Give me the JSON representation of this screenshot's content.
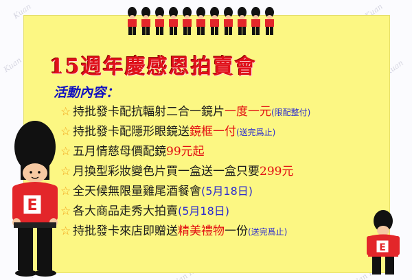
{
  "watermark": {
    "text": "Kuan",
    "text2": "Nan Kuan"
  },
  "title": "15週年慶感恩拍賣會",
  "subheading": "活動內容：",
  "items": [
    {
      "text": "持批發卡配抗輻射二合一鏡片",
      "highlight": "一度一元",
      "note": "(限配整付)"
    },
    {
      "text": "持批發卡配隱形眼鏡送",
      "highlight": "鏡框一付",
      "note": "(送完爲止)"
    },
    {
      "text": "五月情慈母價配鏡",
      "highlight": "99元起",
      "note": ""
    },
    {
      "text": "月換型彩妝變色片買一盒送一盒只要",
      "highlight": "299元",
      "note": ""
    },
    {
      "text": "全天候無限量雞尾酒餐會",
      "highlight": "",
      "note": "(5月18日)"
    },
    {
      "text": "各大商品走秀大拍賣",
      "highlight": "",
      "note": "(5月18日)"
    },
    {
      "text": "持批發卡來店即贈送",
      "highlight": "精美禮物",
      "text_after": "一份",
      "note": "(送完爲止)"
    }
  ],
  "star_icon": "☆",
  "guard_letter": "E",
  "colors": {
    "panel": "#fcf783",
    "title": "#e0101a",
    "subheading": "#1010c0",
    "highlight": "#e20e12",
    "note": "#2a2ad0",
    "star": "#f3a31a"
  }
}
